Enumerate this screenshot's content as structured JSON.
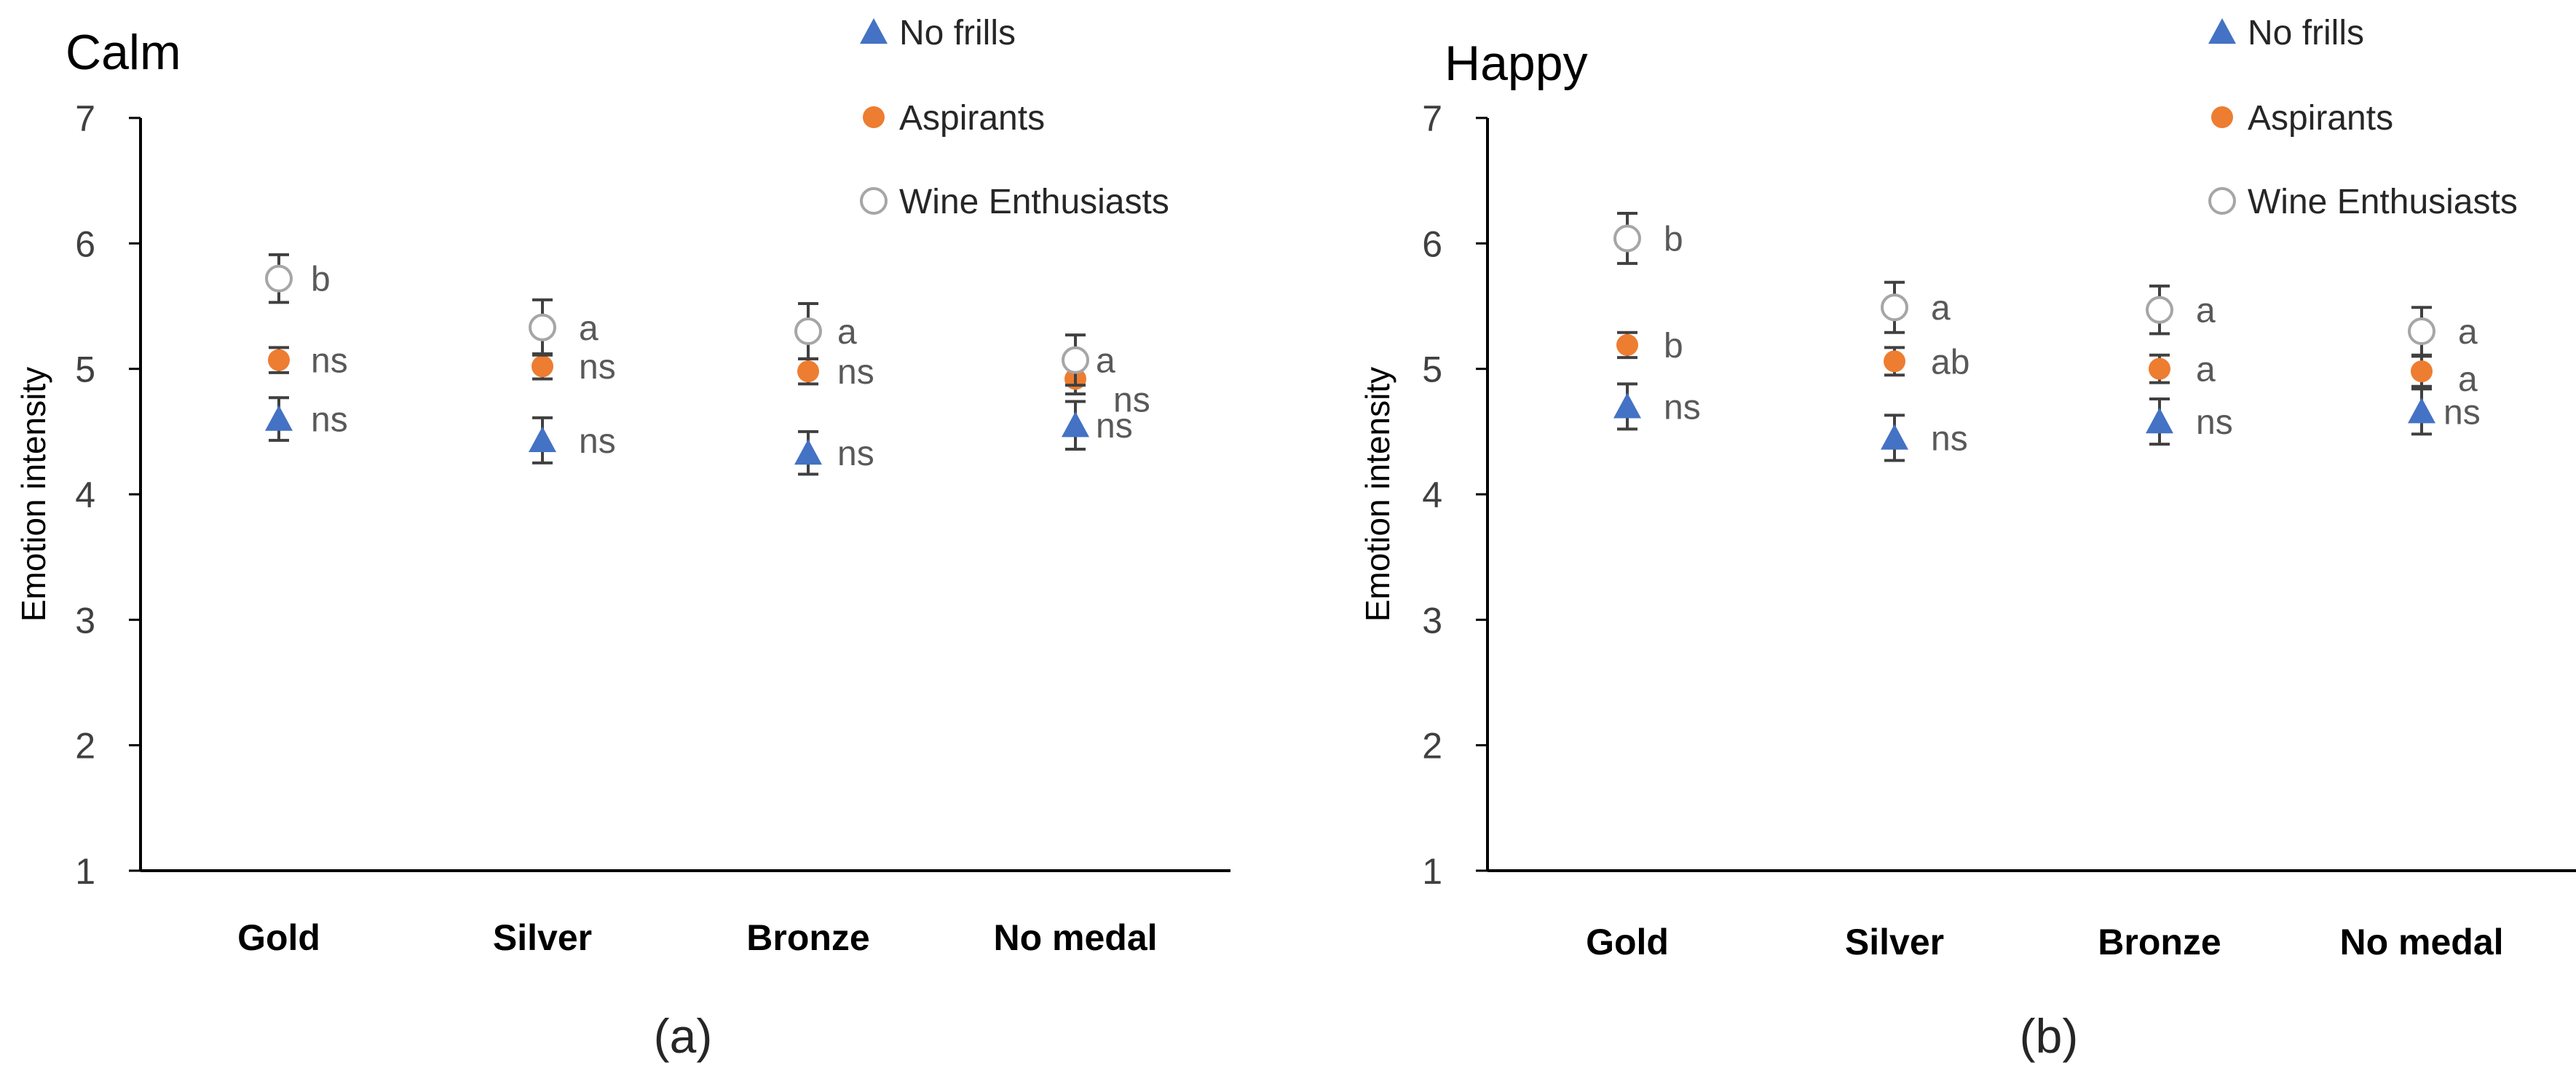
{
  "colors": {
    "no_frills": "#4472C4",
    "aspirants": "#ED7D31",
    "wine_enthusiasts_stroke": "#A6A6A6",
    "error_bar": "#404040",
    "axis": "#000000",
    "significance_text": "#595959"
  },
  "chart_data": [
    {
      "type": "scatter",
      "title": "Calm",
      "caption": "(a)",
      "xlabel": "",
      "ylabel": "Emotion intensity",
      "ylim": [
        1,
        7
      ],
      "yticks": [
        "1",
        "2",
        "3",
        "4",
        "5",
        "6",
        "7"
      ],
      "grid": false,
      "legend_position": "top-right",
      "categories": [
        "Gold",
        "Silver",
        "Bronze",
        "No medal"
      ],
      "series": [
        {
          "name": "No frills",
          "marker": "triangle",
          "values": [
            4.6,
            4.43,
            4.33,
            4.55
          ],
          "errors": [
            0.17,
            0.18,
            0.17,
            0.19
          ],
          "labels": [
            "ns",
            "ns",
            "ns",
            "ns"
          ]
        },
        {
          "name": "Aspirants",
          "marker": "filled-circle",
          "values": [
            5.07,
            5.02,
            4.98,
            4.92
          ],
          "errors": [
            0.1,
            0.1,
            0.1,
            0.12
          ],
          "labels": [
            "ns",
            "ns",
            "ns",
            "ns"
          ]
        },
        {
          "name": "Wine Enthusiasts",
          "marker": "open-circle",
          "values": [
            5.72,
            5.33,
            5.3,
            5.07
          ],
          "errors": [
            0.19,
            0.22,
            0.22,
            0.2
          ],
          "labels": [
            "b",
            "a",
            "a",
            "a"
          ]
        }
      ]
    },
    {
      "type": "scatter",
      "title": "Happy",
      "caption": "(b)",
      "xlabel": "",
      "ylabel": "Emotion intensity",
      "ylim": [
        1,
        7
      ],
      "yticks": [
        "1",
        "2",
        "3",
        "4",
        "5",
        "6",
        "7"
      ],
      "grid": false,
      "legend_position": "top-right",
      "categories": [
        "Gold",
        "Silver",
        "Bronze",
        "No medal"
      ],
      "series": [
        {
          "name": "No frills",
          "marker": "triangle",
          "values": [
            4.7,
            4.45,
            4.58,
            4.66
          ],
          "errors": [
            0.18,
            0.18,
            0.18,
            0.18
          ],
          "labels": [
            "ns",
            "ns",
            "ns",
            "ns"
          ]
        },
        {
          "name": "Aspirants",
          "marker": "filled-circle",
          "values": [
            5.19,
            5.06,
            5.0,
            4.98
          ],
          "errors": [
            0.1,
            0.11,
            0.11,
            0.12
          ],
          "labels": [
            "b",
            "ab",
            "a",
            "a"
          ]
        },
        {
          "name": "Wine Enthusiasts",
          "marker": "open-circle",
          "values": [
            6.04,
            5.49,
            5.47,
            5.3
          ],
          "errors": [
            0.2,
            0.2,
            0.19,
            0.19
          ],
          "labels": [
            "b",
            "a",
            "a",
            "a"
          ]
        }
      ]
    }
  ]
}
